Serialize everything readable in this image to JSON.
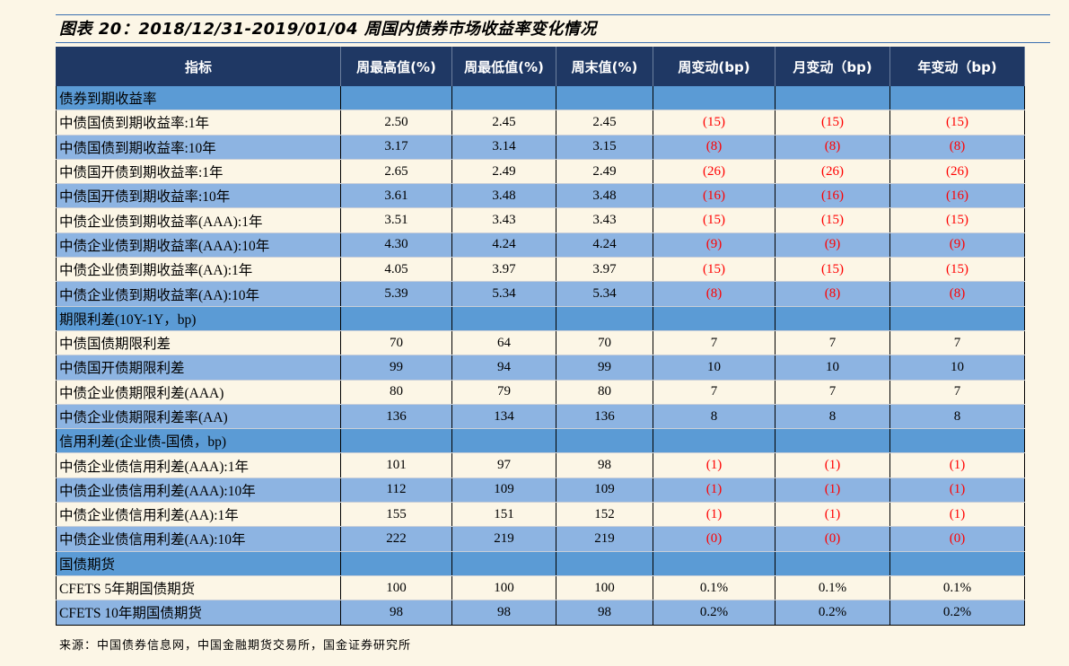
{
  "title": "图表 20：2018/12/31-2019/01/04 周国内债券市场收益率变化情况",
  "headers": [
    "指标",
    "周最高值(%)",
    "周最低值(%)",
    "周末值(%)",
    "周变动(bp)",
    "月变动（bp)",
    "年变动（bp)"
  ],
  "rows": [
    {
      "type": "section",
      "label": "债券到期收益率"
    },
    {
      "type": "data",
      "label": "中债国债到期收益率:1年",
      "values": [
        "2.50",
        "2.45",
        "2.45",
        "(15)",
        "(15)",
        "(15)"
      ]
    },
    {
      "type": "data",
      "label": "中债国债到期收益率:10年",
      "values": [
        "3.17",
        "3.14",
        "3.15",
        "(8)",
        "(8)",
        "(8)"
      ]
    },
    {
      "type": "data",
      "label": "中债国开债到期收益率:1年",
      "values": [
        "2.65",
        "2.49",
        "2.49",
        "(26)",
        "(26)",
        "(26)"
      ]
    },
    {
      "type": "data",
      "label": "中债国开债到期收益率:10年",
      "values": [
        "3.61",
        "3.48",
        "3.48",
        "(16)",
        "(16)",
        "(16)"
      ]
    },
    {
      "type": "data",
      "label": "中债企业债到期收益率(AAA):1年",
      "values": [
        "3.51",
        "3.43",
        "3.43",
        "(15)",
        "(15)",
        "(15)"
      ]
    },
    {
      "type": "data",
      "label": "中债企业债到期收益率(AAA):10年",
      "values": [
        "4.30",
        "4.24",
        "4.24",
        "(9)",
        "(9)",
        "(9)"
      ]
    },
    {
      "type": "data",
      "label": "中债企业债到期收益率(AA):1年",
      "values": [
        "4.05",
        "3.97",
        "3.97",
        "(15)",
        "(15)",
        "(15)"
      ]
    },
    {
      "type": "data",
      "label": "中债企业债到期收益率(AA):10年",
      "values": [
        "5.39",
        "5.34",
        "5.34",
        "(8)",
        "(8)",
        "(8)"
      ]
    },
    {
      "type": "section",
      "label": "期限利差(10Y-1Y，bp)"
    },
    {
      "type": "data",
      "label": "中债国债期限利差",
      "values": [
        "70",
        "64",
        "70",
        "7",
        "7",
        "7"
      ]
    },
    {
      "type": "data",
      "label": "中债国开债期限利差",
      "values": [
        "99",
        "94",
        "99",
        "10",
        "10",
        "10"
      ]
    },
    {
      "type": "data",
      "label": "中债企业债期限利差(AAA)",
      "values": [
        "80",
        "79",
        "80",
        "7",
        "7",
        "7"
      ]
    },
    {
      "type": "data",
      "label": "中债企业债期限利差率(AA)",
      "values": [
        "136",
        "134",
        "136",
        "8",
        "8",
        "8"
      ]
    },
    {
      "type": "section",
      "label": "信用利差(企业债-国债，bp)"
    },
    {
      "type": "data",
      "label": "中债企业债信用利差(AAA):1年",
      "values": [
        "101",
        "97",
        "98",
        "(1)",
        "(1)",
        "(1)"
      ]
    },
    {
      "type": "data",
      "label": "中债企业债信用利差(AAA):10年",
      "values": [
        "112",
        "109",
        "109",
        "(1)",
        "(1)",
        "(1)"
      ]
    },
    {
      "type": "data",
      "label": "中债企业债信用利差(AA):1年",
      "values": [
        "155",
        "151",
        "152",
        "(1)",
        "(1)",
        "(1)"
      ]
    },
    {
      "type": "data",
      "label": "中债企业债信用利差(AA):10年",
      "values": [
        "222",
        "219",
        "219",
        "(0)",
        "(0)",
        "(0)"
      ]
    },
    {
      "type": "section",
      "label": "国债期货"
    },
    {
      "type": "data",
      "label": "CFETS 5年期国债期货",
      "values": [
        "100",
        "100",
        "100",
        "0.1%",
        "0.1%",
        "0.1%"
      ]
    },
    {
      "type": "data",
      "label": "CFETS 10年期国债期货",
      "values": [
        "98",
        "98",
        "98",
        "0.2%",
        "0.2%",
        "0.2%"
      ]
    }
  ],
  "source": "来源：中国债券信息网，中国金融期货交易所，国金证券研究所",
  "colors": {
    "header_bg": "#1f3864",
    "section_bg": "#5b9bd5",
    "row_light": "#fcf6e6",
    "row_blue": "#8db4e2",
    "negative": "#ff0000",
    "rule": "#3a6fb0"
  }
}
